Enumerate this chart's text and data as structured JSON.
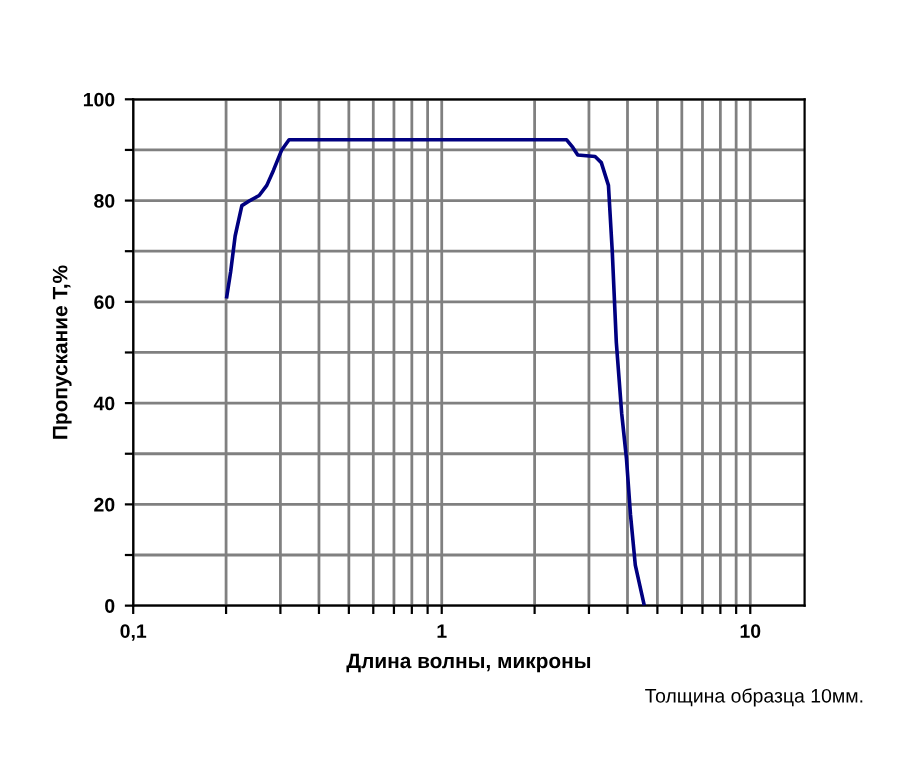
{
  "chart_data": {
    "type": "line",
    "xlabel": "Длина волны, микроны",
    "ylabel": "Пропускание T,%",
    "log": "x",
    "grid": true,
    "line_style": "solid",
    "marker": "none",
    "annotations": [
      "Толщина образца 10мм."
    ],
    "xlim": [
      0.1,
      15
    ],
    "ylim": [
      0,
      100
    ],
    "xticks": [
      {
        "value": 0.1,
        "label": "0,1"
      },
      {
        "value": 0.2,
        "label": null
      },
      {
        "value": 0.3,
        "label": null
      },
      {
        "value": 0.4,
        "label": null
      },
      {
        "value": 0.5,
        "label": null
      },
      {
        "value": 0.6,
        "label": null
      },
      {
        "value": 0.7,
        "label": null
      },
      {
        "value": 0.8,
        "label": null
      },
      {
        "value": 0.9,
        "label": null
      },
      1,
      {
        "value": 2,
        "label": null
      },
      {
        "value": 3,
        "label": null
      },
      {
        "value": 4,
        "label": null
      },
      {
        "value": 5,
        "label": null
      },
      {
        "value": 6,
        "label": null
      },
      {
        "value": 7,
        "label": null
      },
      {
        "value": 8,
        "label": null
      },
      {
        "value": 9,
        "label": null
      },
      10
    ],
    "yticks": [
      0,
      {
        "value": 10,
        "label": null
      },
      20,
      {
        "value": 30,
        "label": null
      },
      40,
      {
        "value": 50,
        "label": null
      },
      60,
      {
        "value": 70,
        "label": null
      },
      80,
      {
        "value": 90,
        "label": null
      },
      100
    ],
    "series": [
      {
        "color": "#000080",
        "x": [
          0.201,
          0.207,
          0.214,
          0.225,
          0.239,
          0.256,
          0.271,
          0.285,
          0.303,
          0.32,
          1.0,
          2.54,
          2.66,
          2.76,
          3.14,
          3.29,
          3.47,
          3.57,
          3.68,
          3.83,
          3.97,
          4.09,
          4.24,
          4.52
        ],
        "values": [
          61,
          66,
          73,
          79,
          80,
          81,
          83,
          86,
          90,
          92,
          92,
          92,
          90.5,
          89,
          88.7,
          87.5,
          83,
          70,
          52,
          38,
          29,
          18,
          8,
          0.4
        ]
      }
    ]
  }
}
